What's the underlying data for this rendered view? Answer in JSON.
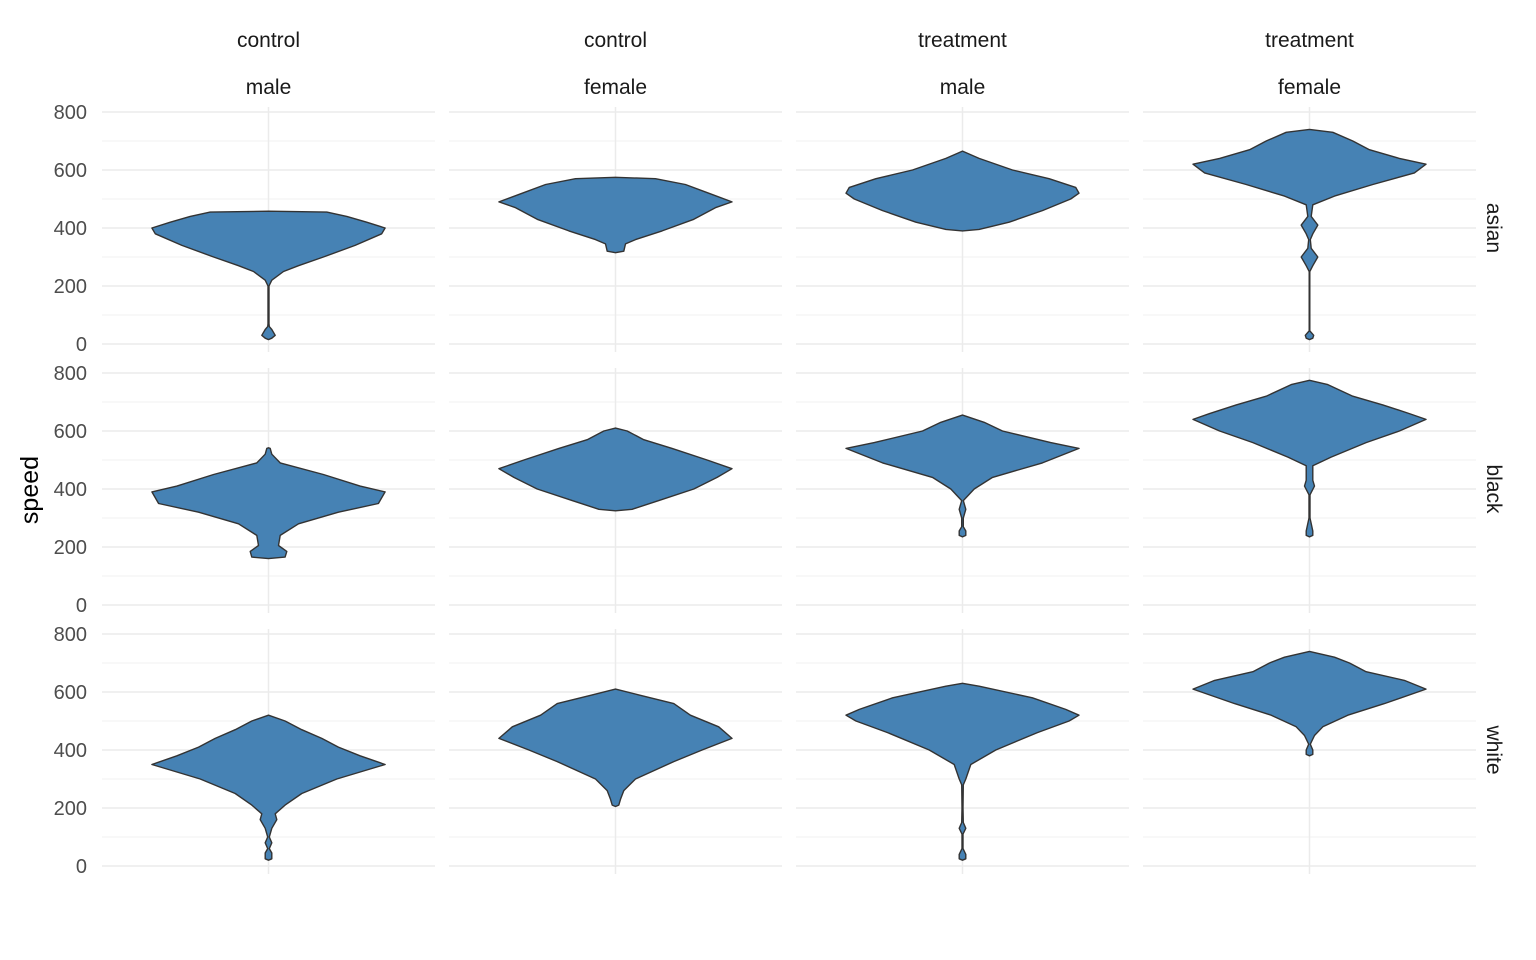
{
  "chart_data": {
    "type": "violin",
    "ylabel": "speed",
    "xlabel": "",
    "ylim": [
      0,
      800
    ],
    "y_ticks": [
      "0",
      "200",
      "400",
      "600",
      "800"
    ],
    "grid": true,
    "fill_color": "#4682B4",
    "outline_color": "#333333",
    "col_facets": [
      {
        "line1": "control",
        "line2": "male"
      },
      {
        "line1": "control",
        "line2": "female"
      },
      {
        "line1": "treatment",
        "line2": "male"
      },
      {
        "line1": "treatment",
        "line2": "female"
      }
    ],
    "row_facets": [
      "asian",
      "black",
      "white"
    ],
    "panels": [
      [
        {
          "profile": [
            [
              15,
              0
            ],
            [
              20,
              0.02
            ],
            [
              30,
              0.04
            ],
            [
              50,
              0.02
            ],
            [
              60,
              0.005
            ],
            [
              70,
              0.003
            ],
            [
              150,
              0.003
            ],
            [
              200,
              0.003
            ],
            [
              220,
              0.02
            ],
            [
              250,
              0.09
            ],
            [
              270,
              0.18
            ],
            [
              300,
              0.33
            ],
            [
              340,
              0.52
            ],
            [
              380,
              0.68
            ],
            [
              400,
              0.7
            ],
            [
              420,
              0.59
            ],
            [
              440,
              0.47
            ],
            [
              455,
              0.35
            ],
            [
              458,
              0
            ]
          ]
        },
        {
          "profile": [
            [
              315,
              0
            ],
            [
              320,
              0.05
            ],
            [
              345,
              0.06
            ],
            [
              360,
              0.12
            ],
            [
              390,
              0.28
            ],
            [
              430,
              0.47
            ],
            [
              470,
              0.6
            ],
            [
              490,
              0.7
            ],
            [
              520,
              0.56
            ],
            [
              550,
              0.42
            ],
            [
              570,
              0.24
            ],
            [
              575,
              0
            ]
          ]
        },
        {
          "profile": [
            [
              390,
              0
            ],
            [
              395,
              0.1
            ],
            [
              420,
              0.28
            ],
            [
              460,
              0.48
            ],
            [
              500,
              0.65
            ],
            [
              520,
              0.7
            ],
            [
              540,
              0.68
            ],
            [
              570,
              0.52
            ],
            [
              600,
              0.3
            ],
            [
              640,
              0.1
            ],
            [
              665,
              0
            ]
          ]
        },
        {
          "profile": [
            [
              15,
              0
            ],
            [
              20,
              0.02
            ],
            [
              30,
              0.025
            ],
            [
              45,
              0.002
            ],
            [
              100,
              0.002
            ],
            [
              250,
              0.002
            ],
            [
              270,
              0.02
            ],
            [
              300,
              0.05
            ],
            [
              330,
              0.01
            ],
            [
              360,
              0.005
            ],
            [
              380,
              0.02
            ],
            [
              410,
              0.05
            ],
            [
              440,
              0.01
            ],
            [
              480,
              0.02
            ],
            [
              510,
              0.15
            ],
            [
              550,
              0.38
            ],
            [
              590,
              0.63
            ],
            [
              620,
              0.7
            ],
            [
              640,
              0.54
            ],
            [
              670,
              0.36
            ],
            [
              700,
              0.26
            ],
            [
              730,
              0.14
            ],
            [
              740,
              0
            ]
          ]
        }
      ],
      [
        {
          "profile": [
            [
              160,
              0
            ],
            [
              165,
              0.1
            ],
            [
              185,
              0.11
            ],
            [
              205,
              0.06
            ],
            [
              240,
              0.07
            ],
            [
              280,
              0.18
            ],
            [
              320,
              0.42
            ],
            [
              350,
              0.66
            ],
            [
              390,
              0.7
            ],
            [
              410,
              0.55
            ],
            [
              450,
              0.33
            ],
            [
              490,
              0.07
            ],
            [
              520,
              0.02
            ],
            [
              540,
              0.01
            ],
            [
              542,
              0
            ]
          ]
        },
        {
          "profile": [
            [
              325,
              0
            ],
            [
              330,
              0.1
            ],
            [
              360,
              0.26
            ],
            [
              400,
              0.47
            ],
            [
              440,
              0.61
            ],
            [
              470,
              0.7
            ],
            [
              500,
              0.55
            ],
            [
              540,
              0.34
            ],
            [
              570,
              0.17
            ],
            [
              600,
              0.07
            ],
            [
              610,
              0
            ]
          ]
        },
        {
          "profile": [
            [
              235,
              0
            ],
            [
              240,
              0.02
            ],
            [
              255,
              0.02
            ],
            [
              270,
              0.005
            ],
            [
              300,
              0.005
            ],
            [
              330,
              0.02
            ],
            [
              360,
              0.005
            ],
            [
              400,
              0.07
            ],
            [
              440,
              0.18
            ],
            [
              490,
              0.48
            ],
            [
              540,
              0.7
            ],
            [
              560,
              0.53
            ],
            [
              600,
              0.24
            ],
            [
              630,
              0.13
            ],
            [
              655,
              0
            ]
          ]
        },
        {
          "profile": [
            [
              235,
              0
            ],
            [
              240,
              0.02
            ],
            [
              255,
              0.02
            ],
            [
              300,
              0.003
            ],
            [
              380,
              0.003
            ],
            [
              410,
              0.03
            ],
            [
              430,
              0.02
            ],
            [
              480,
              0.02
            ],
            [
              510,
              0.13
            ],
            [
              560,
              0.34
            ],
            [
              600,
              0.54
            ],
            [
              640,
              0.7
            ],
            [
              660,
              0.6
            ],
            [
              690,
              0.44
            ],
            [
              720,
              0.26
            ],
            [
              760,
              0.11
            ],
            [
              775,
              0
            ]
          ]
        }
      ],
      [
        {
          "profile": [
            [
              20,
              0
            ],
            [
              25,
              0.02
            ],
            [
              45,
              0.02
            ],
            [
              60,
              0.005
            ],
            [
              80,
              0.02
            ],
            [
              100,
              0.005
            ],
            [
              130,
              0.02
            ],
            [
              160,
              0.05
            ],
            [
              180,
              0.04
            ],
            [
              210,
              0.1
            ],
            [
              250,
              0.2
            ],
            [
              300,
              0.41
            ],
            [
              350,
              0.7
            ],
            [
              380,
              0.55
            ],
            [
              410,
              0.42
            ],
            [
              440,
              0.32
            ],
            [
              470,
              0.2
            ],
            [
              500,
              0.1
            ],
            [
              520,
              0
            ]
          ]
        },
        {
          "profile": [
            [
              205,
              0
            ],
            [
              210,
              0.02
            ],
            [
              230,
              0.03
            ],
            [
              260,
              0.05
            ],
            [
              300,
              0.12
            ],
            [
              360,
              0.35
            ],
            [
              400,
              0.52
            ],
            [
              440,
              0.7
            ],
            [
              480,
              0.62
            ],
            [
              520,
              0.45
            ],
            [
              560,
              0.35
            ],
            [
              590,
              0.14
            ],
            [
              610,
              0
            ]
          ]
        },
        {
          "profile": [
            [
              20,
              0
            ],
            [
              25,
              0.02
            ],
            [
              40,
              0.02
            ],
            [
              60,
              0.003
            ],
            [
              110,
              0.003
            ],
            [
              130,
              0.02
            ],
            [
              150,
              0.005
            ],
            [
              200,
              0.003
            ],
            [
              280,
              0.005
            ],
            [
              300,
              0.02
            ],
            [
              350,
              0.05
            ],
            [
              400,
              0.2
            ],
            [
              460,
              0.45
            ],
            [
              500,
              0.64
            ],
            [
              520,
              0.7
            ],
            [
              540,
              0.62
            ],
            [
              580,
              0.42
            ],
            [
              620,
              0.1
            ],
            [
              630,
              0
            ]
          ]
        },
        {
          "profile": [
            [
              380,
              0
            ],
            [
              385,
              0.02
            ],
            [
              400,
              0.02
            ],
            [
              420,
              0.005
            ],
            [
              450,
              0.03
            ],
            [
              480,
              0.08
            ],
            [
              520,
              0.23
            ],
            [
              560,
              0.45
            ],
            [
              610,
              0.7
            ],
            [
              640,
              0.57
            ],
            [
              670,
              0.34
            ],
            [
              700,
              0.24
            ],
            [
              720,
              0.15
            ],
            [
              740,
              0
            ]
          ]
        }
      ]
    ]
  }
}
